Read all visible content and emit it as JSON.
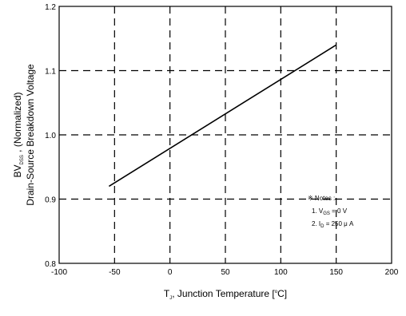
{
  "chart_data": {
    "type": "line",
    "xlabel": {
      "prefix": "T",
      "sub": "J",
      "suffix": ", Junction Temperature [",
      "deg": "o",
      "end": "C]"
    },
    "ylabel": {
      "line1": {
        "prefix": "BV",
        "sub": "DSS",
        "suffix": " , (Normalized)"
      },
      "line2": "Drain-Source Breakdown Voltage"
    },
    "xlim": [
      -100,
      200
    ],
    "ylim": [
      0.8,
      1.2
    ],
    "x_ticks": [
      "-100",
      "-50",
      "0",
      "50",
      "100",
      "150",
      "200"
    ],
    "y_ticks": [
      "0.8",
      "0.9",
      "1.0",
      "1.1",
      "1.2"
    ],
    "grid": "dashed",
    "series": [
      {
        "x": [
          -55,
          150
        ],
        "y": [
          0.92,
          1.14
        ],
        "color": "#000000"
      }
    ],
    "notes": {
      "title": "※ Notes :",
      "line1": {
        "prefix": "1. V",
        "sub": "GS",
        "suffix": " = 0 V"
      },
      "line2": {
        "prefix": "2. I",
        "sub": "D",
        "suffix": " = 250 μ A"
      }
    }
  }
}
